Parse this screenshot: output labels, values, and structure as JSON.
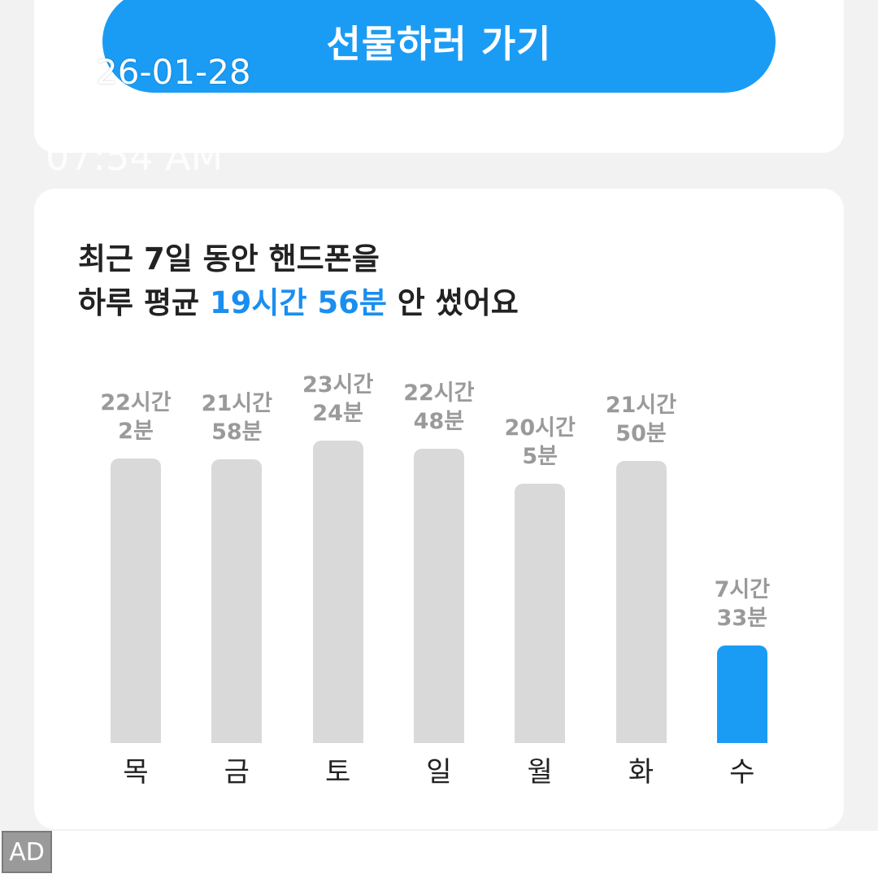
{
  "top_card": {
    "button_label": "선물하러 가기",
    "overlay_date": "26-01-28",
    "overlay_time": "07:54 AM"
  },
  "summary": {
    "line1": "최근 7일 동안 핸드폰을",
    "line2_prefix": "하루 평균 ",
    "line2_highlight": "19시간 56분",
    "line2_suffix": " 안 썼어요"
  },
  "colors": {
    "accent": "#1a9cf5",
    "bar_inactive": "#d9d9d9",
    "label_gray": "#9a9a9a"
  },
  "chart_data": {
    "type": "bar",
    "categories": [
      "목",
      "금",
      "토",
      "일",
      "월",
      "화",
      "수"
    ],
    "values_minutes": [
      1322,
      1318,
      1404,
      1368,
      1205,
      1310,
      453
    ],
    "value_labels": [
      [
        "22시간",
        "2분"
      ],
      [
        "21시간",
        "58분"
      ],
      [
        "23시간",
        "24분"
      ],
      [
        "22시간",
        "48분"
      ],
      [
        "20시간",
        "5분"
      ],
      [
        "21시간",
        "50분"
      ],
      [
        "7시간",
        "33분"
      ]
    ],
    "highlight_index": 6
  },
  "ad": {
    "label": "AD"
  }
}
